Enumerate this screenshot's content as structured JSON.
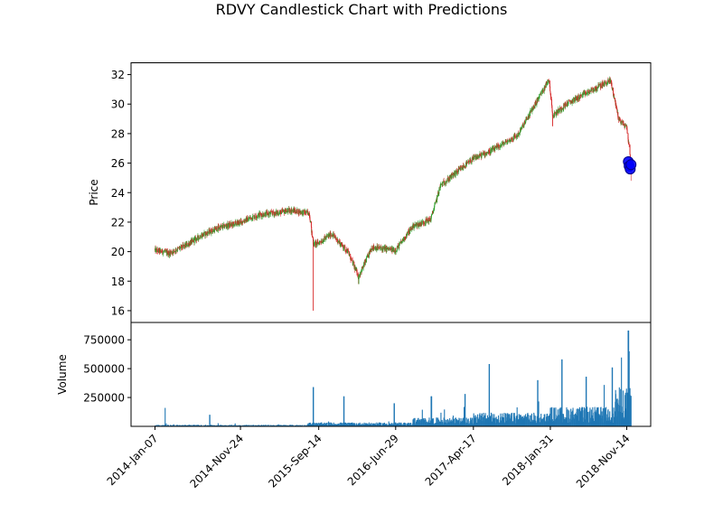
{
  "chart_data": [
    {
      "type": "candlestick",
      "title": "RDVY Candlestick Chart with Predictions",
      "ylabel": "Price",
      "ylim": [
        15.2,
        32.8
      ],
      "yticks": [
        16,
        18,
        20,
        22,
        24,
        26,
        28,
        30,
        32
      ],
      "grid": false,
      "colors": {
        "up": "#2ca02c",
        "down": "#d62728",
        "prediction": "#0000ff",
        "prediction_edge": "#00008b"
      },
      "x_dates": [
        "2014-01-07",
        "2014-03-01",
        "2014-05-01",
        "2014-07-01",
        "2014-09-01",
        "2014-11-24",
        "2015-02-01",
        "2015-04-01",
        "2015-06-01",
        "2015-08-10",
        "2015-08-24",
        "2015-09-14",
        "2015-11-01",
        "2016-01-01",
        "2016-02-11",
        "2016-04-01",
        "2016-06-29",
        "2016-09-01",
        "2016-11-08",
        "2016-12-15",
        "2017-02-01",
        "2017-04-17",
        "2017-07-01",
        "2017-10-01",
        "2018-01-26",
        "2018-02-09",
        "2018-04-01",
        "2018-06-01",
        "2018-09-14",
        "2018-10-15",
        "2018-11-14",
        "2018-12-01"
      ],
      "x_close": [
        20.1,
        19.9,
        20.4,
        21.1,
        21.6,
        22.0,
        22.5,
        22.6,
        22.8,
        22.6,
        20.5,
        20.6,
        21.2,
        20.0,
        18.3,
        20.3,
        20.1,
        21.7,
        22.2,
        24.5,
        25.2,
        26.3,
        26.9,
        27.9,
        31.7,
        29.2,
        30.0,
        30.6,
        31.6,
        29.0,
        28.4,
        25.9
      ],
      "wick_extremes": [
        {
          "date": "2015-08-24",
          "low": 16.0
        },
        {
          "date": "2016-02-11",
          "low": 17.8
        },
        {
          "date": "2018-02-09",
          "low": 28.5
        },
        {
          "date": "2018-12-01",
          "low": 24.8
        }
      ],
      "predictions": {
        "dates": [
          "2018-11-20",
          "2018-11-23",
          "2018-11-27",
          "2018-11-30"
        ],
        "values": [
          26.1,
          25.8,
          25.6,
          25.9
        ]
      }
    },
    {
      "type": "bar",
      "ylabel": "Volume",
      "ylim": [
        0,
        900000
      ],
      "yticks": [
        250000,
        500000,
        750000
      ],
      "ytick_labels": [
        "250000",
        "500000",
        "750000"
      ],
      "color": "#1f77b4",
      "xticks": [
        "2014-Jan-07",
        "2014-Nov-24",
        "2015-Sep-14",
        "2016-Jun-29",
        "2017-Apr-17",
        "2018-Jan-31",
        "2018-Nov-14"
      ],
      "volume_levels": [
        {
          "from": "2014-01-07",
          "to": "2015-08-01",
          "typical": 8000
        },
        {
          "from": "2015-08-01",
          "to": "2016-09-01",
          "typical": 20000
        },
        {
          "from": "2016-09-01",
          "to": "2017-04-17",
          "typical": 45000
        },
        {
          "from": "2017-04-17",
          "to": "2018-01-31",
          "typical": 70000
        },
        {
          "from": "2018-01-31",
          "to": "2018-10-01",
          "typical": 100000
        },
        {
          "from": "2018-10-01",
          "to": "2018-12-01",
          "typical": 200000
        }
      ],
      "volume_spikes": [
        {
          "date": "2014-02-15",
          "value": 160000
        },
        {
          "date": "2014-08-01",
          "value": 100000
        },
        {
          "date": "2015-08-24",
          "value": 340000
        },
        {
          "date": "2015-12-18",
          "value": 260000
        },
        {
          "date": "2016-06-24",
          "value": 200000
        },
        {
          "date": "2016-11-10",
          "value": 260000
        },
        {
          "date": "2017-03-17",
          "value": 280000
        },
        {
          "date": "2017-06-16",
          "value": 540000
        },
        {
          "date": "2017-12-15",
          "value": 400000
        },
        {
          "date": "2018-03-16",
          "value": 580000
        },
        {
          "date": "2018-06-15",
          "value": 430000
        },
        {
          "date": "2018-09-21",
          "value": 510000
        },
        {
          "date": "2018-11-20",
          "value": 830000
        },
        {
          "date": "2018-11-23",
          "value": 650000
        }
      ]
    }
  ]
}
